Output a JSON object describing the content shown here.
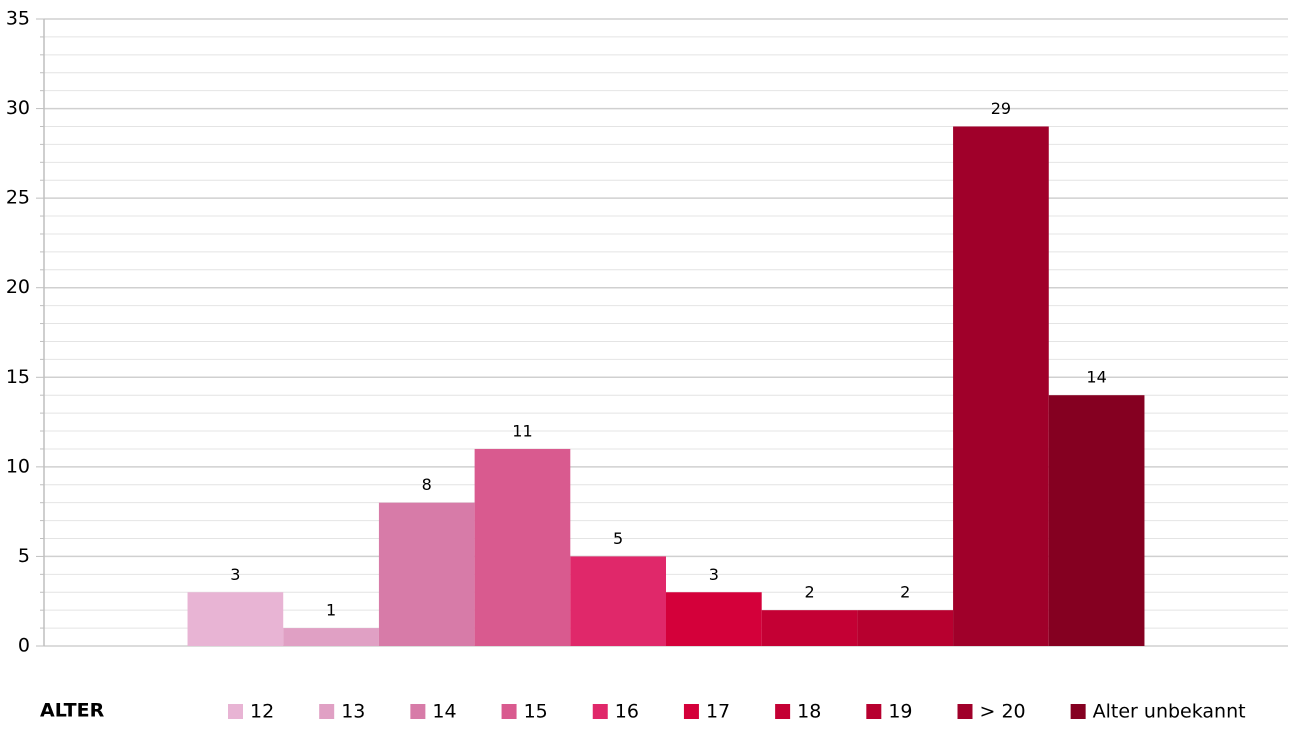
{
  "chart_data": {
    "type": "bar",
    "categories": [
      null
    ],
    "series": [
      {
        "name": "12",
        "color": "#e8b4d4",
        "values": [
          3
        ]
      },
      {
        "name": "13",
        "color": "#e0a0c4",
        "values": [
          1
        ]
      },
      {
        "name": "14",
        "color": "#d77ba8",
        "values": [
          8
        ]
      },
      {
        "name": "15",
        "color": "#d95a8f",
        "values": [
          11
        ]
      },
      {
        "name": "16",
        "color": "#e0286a",
        "values": [
          5
        ]
      },
      {
        "name": "17",
        "color": "#d4003a",
        "values": [
          3
        ]
      },
      {
        "name": "18",
        "color": "#c40034",
        "values": [
          2
        ]
      },
      {
        "name": "19",
        "color": "#b7002f",
        "values": [
          2
        ]
      },
      {
        "name": "> 20",
        "color": "#a0002a",
        "values": [
          29
        ]
      },
      {
        "name": "Alter unbekannt",
        "color": "#850021",
        "values": [
          14
        ]
      }
    ],
    "legend_title": "ALTER",
    "legend_position": "bottom",
    "ylim": [
      0,
      35
    ],
    "yticks": [
      0,
      5,
      10,
      15,
      20,
      25,
      30,
      35
    ],
    "grid": true,
    "minor_grid": true
  }
}
